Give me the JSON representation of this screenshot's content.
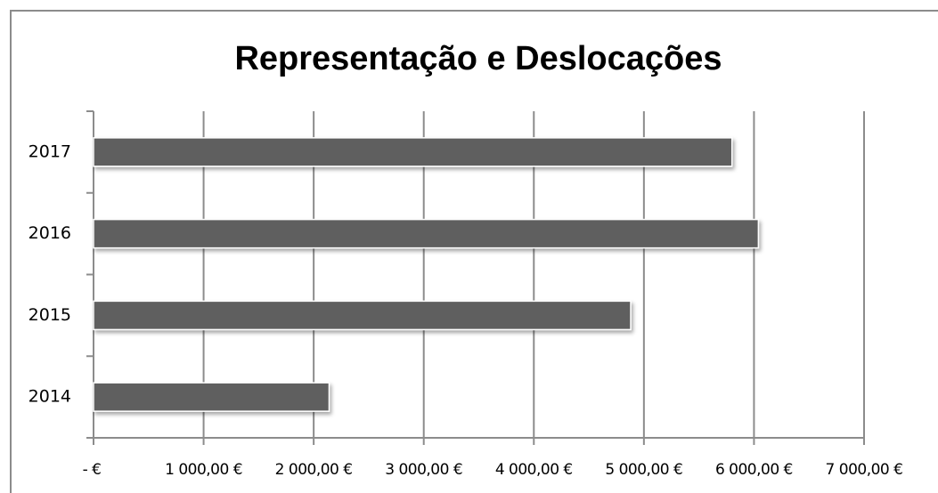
{
  "chart_data": {
    "type": "bar",
    "orientation": "horizontal",
    "title": "Representação e Deslocações",
    "categories": [
      "2014",
      "2015",
      "2016",
      "2017"
    ],
    "values": [
      2140,
      4880,
      6040,
      5800
    ],
    "color": "#5f5f5f",
    "xlim": [
      0,
      7000
    ],
    "xticks": [
      {
        "value": 0,
        "label": "-  €"
      },
      {
        "value": 1000,
        "label": "1 000,00 €"
      },
      {
        "value": 2000,
        "label": "2 000,00 €"
      },
      {
        "value": 3000,
        "label": "3 000,00 €"
      },
      {
        "value": 4000,
        "label": "4 000,00 €"
      },
      {
        "value": 5000,
        "label": "5 000,00 €"
      },
      {
        "value": 6000,
        "label": "6 000,00 €"
      },
      {
        "value": 7000,
        "label": "7 000,00 €"
      }
    ],
    "grid": true
  }
}
